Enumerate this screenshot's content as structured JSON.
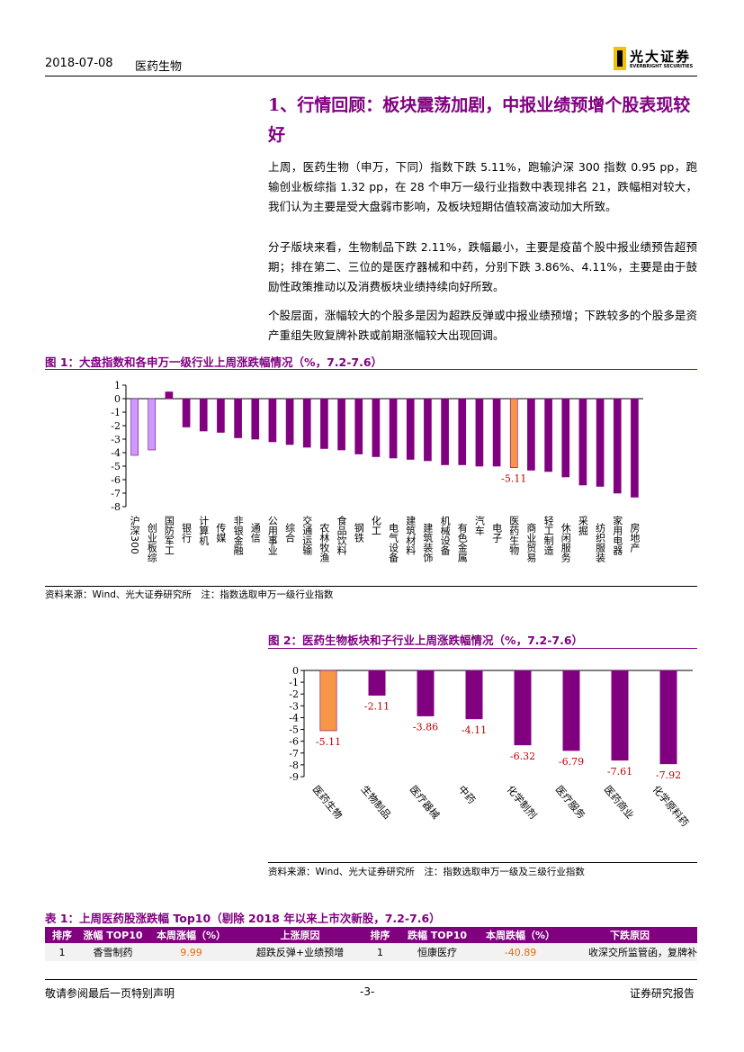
{
  "header": {
    "date": "2018-07-08",
    "sector": "医药生物",
    "logo_cn": "光大证券",
    "logo_en": "EVERBRIGHT SECURITIES"
  },
  "section": {
    "title": "1、行情回顾：板块震荡加剧，中报业绩预增个股表现较好",
    "paragraphs": [
      "上周，医药生物（申万，下同）指数下跌 5.11%，跑输沪深 300 指数 0.95 pp，跑输创业板综指 1.32 pp，在 28 个申万一级行业指数中表现排名 21，跌幅相对较大，我们认为主要是受大盘弱市影响，及板块短期估值较高波动加大所致。",
      "分子版块来看，生物制品下跌 2.11%，跌幅最小，主要是疫苗个股中报业绩预告超预期；排在第二、三位的是医疗器械和中药，分别下跌 3.86%、4.11%，主要是由于鼓励性政策推动以及消费板块业绩持续向好所致。",
      "个股层面，涨幅较大的个股多是因为超跌反弹或中报业绩预增；下跌较多的个股多是资产重组失败复牌补跌或前期涨幅较大出现回调。"
    ]
  },
  "figure1": {
    "caption": "图 1：大盘指数和各申万一级行业上周涨跌幅情况（%，7.2-7.6）",
    "chart_data": {
      "type": "bar",
      "categories": [
        "沪深300",
        "创业板综",
        "国防军工",
        "银行",
        "计算机",
        "传媒",
        "非银金融",
        "通信",
        "公用事业",
        "综合",
        "交通运输",
        "农林牧渔",
        "食品饮料",
        "钢铁",
        "化工",
        "电气设备",
        "建筑材料",
        "建筑装饰",
        "机械设备",
        "有色金属",
        "汽车",
        "电子",
        "医药生物",
        "商业贸易",
        "轻工制造",
        "休闲服务",
        "采掘",
        "纺织服装",
        "家用电器",
        "房地产"
      ],
      "values": [
        -4.2,
        -3.8,
        0.5,
        -2.1,
        -2.4,
        -2.5,
        -2.9,
        -3.0,
        -3.2,
        -3.4,
        -3.6,
        -3.7,
        -3.8,
        -4.1,
        -4.3,
        -4.4,
        -4.5,
        -4.6,
        -4.9,
        -4.9,
        -5.0,
        -5.0,
        -5.11,
        -5.3,
        -5.4,
        -5.8,
        -6.4,
        -6.5,
        -7.0,
        -7.3
      ],
      "colors": [
        "#cc99ff",
        "#cc99ff",
        "#800080",
        "#800080",
        "#800080",
        "#800080",
        "#800080",
        "#800080",
        "#800080",
        "#800080",
        "#800080",
        "#800080",
        "#800080",
        "#800080",
        "#800080",
        "#800080",
        "#800080",
        "#800080",
        "#800080",
        "#800080",
        "#800080",
        "#800080",
        "#f79646",
        "#800080",
        "#800080",
        "#800080",
        "#800080",
        "#800080",
        "#800080",
        "#800080"
      ],
      "label_indices": [
        22
      ],
      "label_color": "#c00000",
      "ylim": [
        -8,
        1
      ],
      "yticks": [
        -8,
        -7,
        -6,
        -5,
        -4,
        -3,
        -2,
        -1,
        0,
        1
      ]
    },
    "source": "资料来源：Wind、光大证券研究所　注：指数选取申万一级行业指数"
  },
  "figure2": {
    "caption": "图 2：医药生物板块和子行业上周涨跌幅情况（%，7.2-7.6）",
    "chart_data": {
      "type": "bar",
      "categories": [
        "医药生物",
        "生物制品",
        "医疗器械",
        "中药",
        "化学制剂",
        "医疗服务",
        "医药商业",
        "化学原料药"
      ],
      "values": [
        -5.11,
        -2.11,
        -3.86,
        -4.11,
        -6.32,
        -6.79,
        -7.61,
        -7.92
      ],
      "colors": [
        "#f79646",
        "#800080",
        "#800080",
        "#800080",
        "#800080",
        "#800080",
        "#800080",
        "#800080"
      ],
      "label_indices": [
        0,
        1,
        2,
        3,
        4,
        5,
        6,
        7
      ],
      "label_color": "#c00000",
      "ylim": [
        -9,
        0
      ],
      "yticks": [
        -9,
        -8,
        -7,
        -6,
        -5,
        -4,
        -3,
        -2,
        -1,
        0
      ]
    },
    "source": "资料来源：Wind、光大证券研究所　注：指数选取申万一级及三级行业指数"
  },
  "table": {
    "caption": "表 1：上周医药股涨跌幅 Top10（剔除 2018 年以来上市次新股，7.2-7.6）",
    "columns": [
      "排序",
      "涨幅 TOP10",
      "本周涨幅（%）",
      "上涨原因",
      "排序",
      "跌幅 TOP10",
      "本周跌幅（%）",
      "下跌原因"
    ],
    "rows": [
      [
        "1",
        "香雪制药",
        "9.99",
        "超跌反弹+业绩预增",
        "1",
        "恒康医疗",
        "-40.89",
        "收深交所监管函，复牌补"
      ]
    ]
  },
  "footer": {
    "left": "敬请参阅最后一页特别声明",
    "page": "-3-",
    "right": "证券研究报告"
  }
}
